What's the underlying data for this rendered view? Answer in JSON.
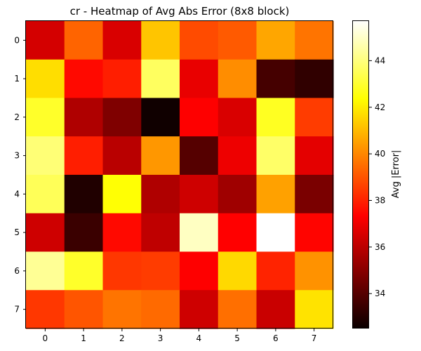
{
  "chart_data": {
    "type": "heatmap",
    "title": "cr - Heatmap of Avg Abs Error (8x8 block)",
    "xlabel": "",
    "ylabel": "",
    "x_ticks": [
      "0",
      "1",
      "2",
      "3",
      "4",
      "5",
      "6",
      "7"
    ],
    "y_ticks": [
      "0",
      "1",
      "2",
      "3",
      "4",
      "5",
      "6",
      "7"
    ],
    "values": [
      [
        36.3,
        39.3,
        36.4,
        41.2,
        38.8,
        39.1,
        40.6,
        39.6
      ],
      [
        41.7,
        37.5,
        37.9,
        43.6,
        36.7,
        40.1,
        33.6,
        33.2
      ],
      [
        42.9,
        35.6,
        34.7,
        32.6,
        37.1,
        36.4,
        42.8,
        38.5
      ],
      [
        43.9,
        37.9,
        35.8,
        40.3,
        33.9,
        36.8,
        43.7,
        36.6
      ],
      [
        43.5,
        32.9,
        42.4,
        35.6,
        36.2,
        35.3,
        40.5,
        34.6
      ],
      [
        36.2,
        33.4,
        37.5,
        35.9,
        44.9,
        37.3,
        45.7,
        37.4
      ],
      [
        44.3,
        42.9,
        38.4,
        38.5,
        37.1,
        41.6,
        38.0,
        40.2
      ],
      [
        38.4,
        39.0,
        39.6,
        39.4,
        36.2,
        39.5,
        36.1,
        41.8
      ]
    ],
    "zlim": [
      32.5,
      45.7
    ],
    "colormap": "hot",
    "colorbar": {
      "label": "Avg |Error|",
      "ticks": [
        34,
        36,
        38,
        40,
        42,
        44
      ]
    }
  }
}
